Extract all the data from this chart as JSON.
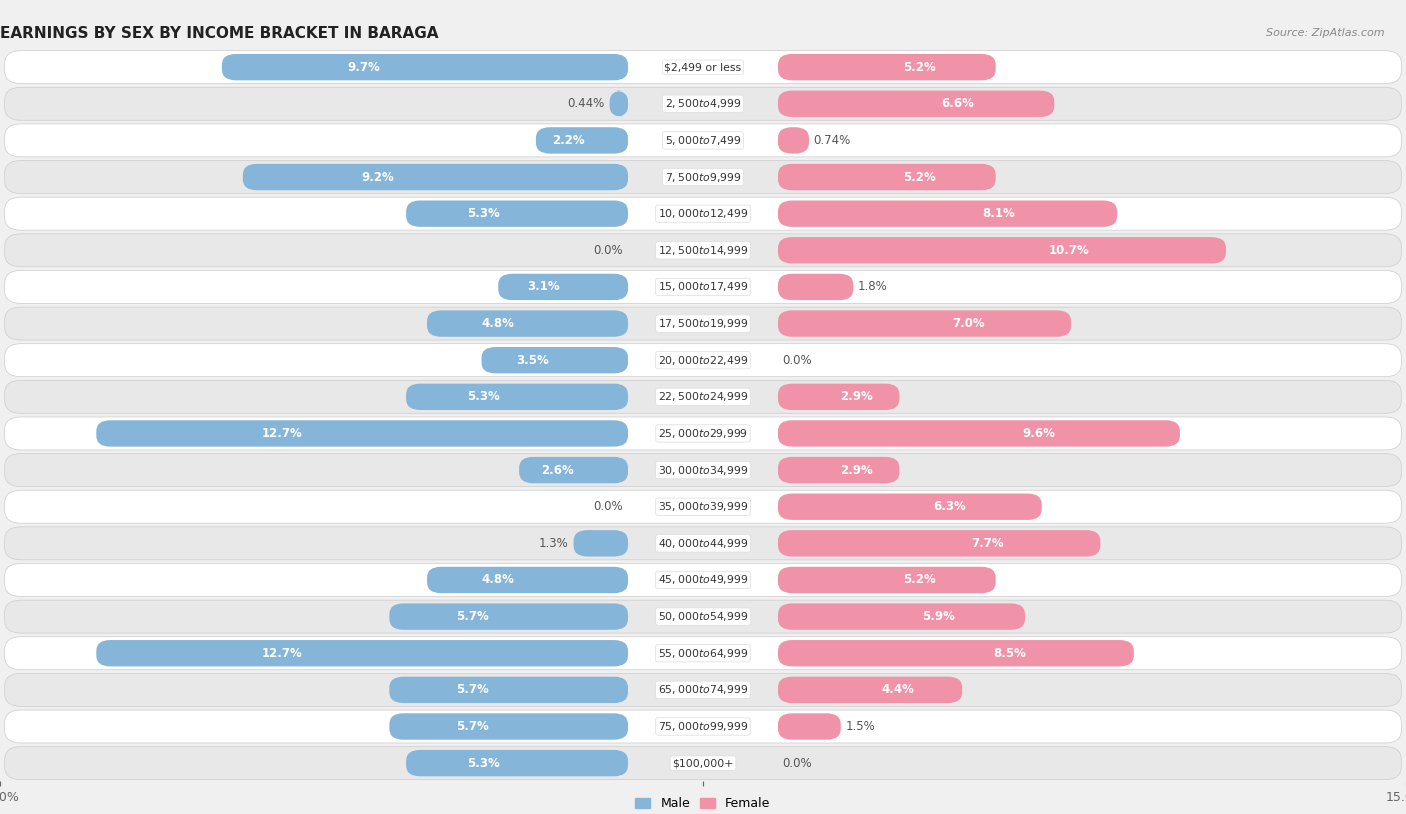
{
  "title": "EARNINGS BY SEX BY INCOME BRACKET IN BARAGA",
  "source": "Source: ZipAtlas.com",
  "categories": [
    "$2,499 or less",
    "$2,500 to $4,999",
    "$5,000 to $7,499",
    "$7,500 to $9,999",
    "$10,000 to $12,499",
    "$12,500 to $14,999",
    "$15,000 to $17,499",
    "$17,500 to $19,999",
    "$20,000 to $22,499",
    "$22,500 to $24,999",
    "$25,000 to $29,999",
    "$30,000 to $34,999",
    "$35,000 to $39,999",
    "$40,000 to $44,999",
    "$45,000 to $49,999",
    "$50,000 to $54,999",
    "$55,000 to $64,999",
    "$65,000 to $74,999",
    "$75,000 to $99,999",
    "$100,000+"
  ],
  "male": [
    9.7,
    0.44,
    2.2,
    9.2,
    5.3,
    0.0,
    3.1,
    4.8,
    3.5,
    5.3,
    12.7,
    2.6,
    0.0,
    1.3,
    4.8,
    5.7,
    12.7,
    5.7,
    5.7,
    5.3
  ],
  "female": [
    5.2,
    6.6,
    0.74,
    5.2,
    8.1,
    10.7,
    1.8,
    7.0,
    0.0,
    2.9,
    9.6,
    2.9,
    6.3,
    7.7,
    5.2,
    5.9,
    8.5,
    4.4,
    1.5,
    0.0
  ],
  "male_color": "#85b5d8",
  "female_color": "#f093a8",
  "background_color": "#f0f0f0",
  "row_white_color": "#ffffff",
  "row_gray_color": "#e8e8e8",
  "xlim": 15.0,
  "figsize": [
    14.06,
    8.14
  ],
  "dpi": 100,
  "label_inside_threshold": 2.0
}
